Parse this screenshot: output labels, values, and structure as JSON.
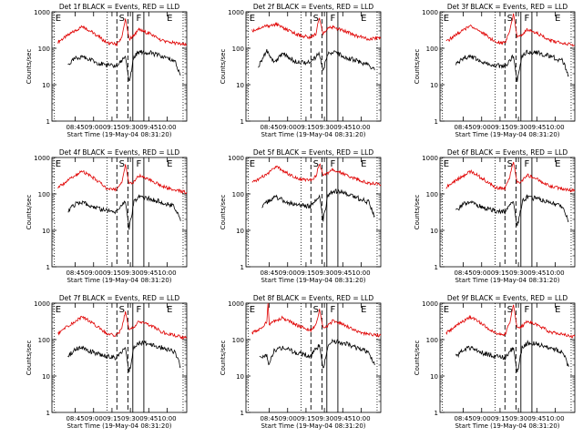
{
  "figure": {
    "start_time_label": "Start Time (19-May-04 08:31:20)",
    "y_axis_label": "Counts/sec",
    "x_tick_labels": [
      "08:45",
      "09:00",
      "09:15",
      "09:30",
      "09:45",
      "10:00"
    ],
    "y_tick_labels": [
      "1",
      "10",
      "100",
      "1000"
    ],
    "interval_letters": [
      "E",
      "S",
      "F",
      "E"
    ]
  },
  "chart_data": [
    {
      "type": "line",
      "title": "Det 1f BLACK = Events, RED = LLD",
      "ylabel": "Counts/sec",
      "xlabel": "Start Time (19-May-04 08:31:20)",
      "x_ticks": [
        "08:45",
        "09:00",
        "09:15",
        "09:30",
        "09:45",
        "10:00"
      ],
      "y_scale": "log",
      "ylim": [
        1,
        1000
      ],
      "series": [
        {
          "name": "LLD",
          "color": "#e00000",
          "x_minutes": [
            0,
            10,
            20,
            30,
            40,
            48,
            52,
            55,
            58,
            62,
            66,
            75,
            85,
            95,
            105
          ],
          "values": [
            150,
            250,
            400,
            250,
            140,
            130,
            200,
            650,
            180,
            220,
            320,
            250,
            160,
            140,
            120
          ]
        },
        {
          "name": "Events",
          "color": "#000000",
          "x_minutes": [
            8,
            15,
            20,
            28,
            38,
            48,
            50,
            55,
            58,
            62,
            66,
            75,
            85,
            95,
            100
          ],
          "values": [
            35,
            55,
            60,
            45,
            35,
            32,
            40,
            60,
            12,
            60,
            80,
            75,
            60,
            45,
            18
          ]
        }
      ]
    },
    {
      "type": "line",
      "title": "Det 2f BLACK = Events, RED = LLD",
      "ylabel": "Counts/sec",
      "xlabel": "Start Time (19-May-04 08:31:20)",
      "x_ticks": [
        "08:45",
        "09:00",
        "09:15",
        "09:30",
        "09:45",
        "10:00"
      ],
      "y_scale": "log",
      "ylim": [
        1,
        1000
      ],
      "series": [
        {
          "name": "LLD",
          "color": "#e00000",
          "x_minutes": [
            0,
            10,
            20,
            30,
            40,
            48,
            52,
            55,
            58,
            62,
            66,
            75,
            85,
            95,
            105
          ],
          "values": [
            300,
            400,
            450,
            300,
            220,
            200,
            250,
            700,
            250,
            350,
            380,
            300,
            220,
            180,
            200
          ]
        },
        {
          "name": "Events",
          "color": "#000000",
          "x_minutes": [
            5,
            12,
            18,
            25,
            35,
            48,
            50,
            55,
            58,
            62,
            66,
            75,
            85,
            95,
            100
          ],
          "values": [
            30,
            90,
            40,
            70,
            45,
            40,
            50,
            70,
            25,
            70,
            80,
            60,
            45,
            35,
            25
          ]
        }
      ]
    },
    {
      "type": "line",
      "title": "Det 3f BLACK = Events, RED = LLD",
      "ylabel": "Counts/sec",
      "xlabel": "Start Time (19-May-04 08:31:20)",
      "x_ticks": [
        "08:45",
        "09:00",
        "09:15",
        "09:30",
        "09:45",
        "10:00"
      ],
      "y_scale": "log",
      "ylim": [
        1,
        1000
      ],
      "series": [
        {
          "name": "LLD",
          "color": "#e00000",
          "x_minutes": [
            0,
            10,
            20,
            30,
            40,
            48,
            52,
            55,
            58,
            62,
            66,
            75,
            85,
            95,
            105
          ],
          "values": [
            150,
            260,
            420,
            260,
            150,
            140,
            300,
            900,
            200,
            230,
            330,
            250,
            160,
            140,
            120
          ]
        },
        {
          "name": "Events",
          "color": "#000000",
          "x_minutes": [
            8,
            15,
            20,
            28,
            38,
            48,
            50,
            55,
            58,
            62,
            66,
            75,
            85,
            95,
            100
          ],
          "values": [
            35,
            55,
            60,
            45,
            35,
            32,
            40,
            60,
            12,
            60,
            80,
            75,
            60,
            45,
            18
          ]
        }
      ]
    },
    {
      "type": "line",
      "title": "Det 4f BLACK = Events, RED = LLD",
      "ylabel": "Counts/sec",
      "xlabel": "Start Time (19-May-04 08:31:20)",
      "x_ticks": [
        "08:45",
        "09:00",
        "09:15",
        "09:30",
        "09:45",
        "10:00"
      ],
      "y_scale": "log",
      "ylim": [
        1,
        1000
      ],
      "series": [
        {
          "name": "LLD",
          "color": "#e00000",
          "x_minutes": [
            0,
            10,
            20,
            30,
            40,
            48,
            52,
            55,
            58,
            62,
            66,
            75,
            85,
            95,
            105
          ],
          "values": [
            150,
            260,
            420,
            260,
            140,
            130,
            200,
            650,
            180,
            220,
            320,
            250,
            160,
            130,
            110
          ]
        },
        {
          "name": "Events",
          "color": "#000000",
          "x_minutes": [
            8,
            15,
            20,
            28,
            38,
            48,
            50,
            55,
            58,
            62,
            66,
            75,
            85,
            95,
            100
          ],
          "values": [
            35,
            55,
            60,
            45,
            35,
            32,
            40,
            60,
            12,
            60,
            80,
            75,
            60,
            45,
            18
          ]
        }
      ]
    },
    {
      "type": "line",
      "title": "Det 5f BLACK = Events, RED = LLD",
      "ylabel": "Counts/sec",
      "xlabel": "Start Time (19-May-04 08:31:20)",
      "x_ticks": [
        "08:45",
        "09:00",
        "09:15",
        "09:30",
        "09:45",
        "10:00"
      ],
      "y_scale": "log",
      "ylim": [
        1,
        1000
      ],
      "series": [
        {
          "name": "LLD",
          "color": "#e00000",
          "x_minutes": [
            0,
            10,
            20,
            30,
            40,
            48,
            52,
            55,
            58,
            62,
            66,
            75,
            85,
            95,
            105
          ],
          "values": [
            200,
            320,
            550,
            350,
            250,
            240,
            300,
            700,
            300,
            380,
            480,
            350,
            250,
            200,
            180
          ]
        },
        {
          "name": "Events",
          "color": "#000000",
          "x_minutes": [
            8,
            15,
            20,
            28,
            38,
            48,
            50,
            55,
            58,
            62,
            66,
            75,
            85,
            95,
            100
          ],
          "values": [
            45,
            70,
            80,
            60,
            50,
            45,
            55,
            90,
            20,
            90,
            120,
            110,
            80,
            60,
            25
          ]
        }
      ]
    },
    {
      "type": "line",
      "title": "Det 6f BLACK = Events, RED = LLD",
      "ylabel": "Counts/sec",
      "xlabel": "Start Time (19-May-04 08:31:20)",
      "x_ticks": [
        "08:45",
        "09:00",
        "09:15",
        "09:30",
        "09:45",
        "10:00"
      ],
      "y_scale": "log",
      "ylim": [
        1,
        1000
      ],
      "series": [
        {
          "name": "LLD",
          "color": "#e00000",
          "x_minutes": [
            0,
            10,
            20,
            30,
            40,
            48,
            52,
            55,
            58,
            62,
            66,
            75,
            85,
            95,
            105
          ],
          "values": [
            150,
            260,
            420,
            260,
            150,
            140,
            300,
            750,
            200,
            230,
            330,
            250,
            160,
            140,
            120
          ]
        },
        {
          "name": "Events",
          "color": "#000000",
          "x_minutes": [
            8,
            15,
            20,
            28,
            38,
            48,
            50,
            55,
            58,
            62,
            66,
            75,
            85,
            95,
            100
          ],
          "values": [
            35,
            55,
            60,
            45,
            35,
            32,
            40,
            60,
            12,
            60,
            80,
            75,
            60,
            45,
            18
          ]
        }
      ]
    },
    {
      "type": "line",
      "title": "Det 7f BLACK = Events, RED = LLD",
      "ylabel": "Counts/sec",
      "xlabel": "Start Time (19-May-04 08:31:20)",
      "x_ticks": [
        "08:45",
        "09:00",
        "09:15",
        "09:30",
        "09:45",
        "10:00"
      ],
      "y_scale": "log",
      "ylim": [
        1,
        1000
      ],
      "series": [
        {
          "name": "LLD",
          "color": "#e00000",
          "x_minutes": [
            0,
            10,
            20,
            30,
            40,
            48,
            52,
            55,
            58,
            62,
            66,
            75,
            85,
            95,
            105
          ],
          "values": [
            150,
            260,
            420,
            260,
            140,
            130,
            200,
            600,
            180,
            220,
            320,
            250,
            160,
            130,
            110
          ]
        },
        {
          "name": "Events",
          "color": "#000000",
          "x_minutes": [
            8,
            15,
            20,
            28,
            38,
            48,
            50,
            55,
            58,
            62,
            66,
            75,
            85,
            95,
            100
          ],
          "values": [
            35,
            55,
            60,
            45,
            35,
            32,
            40,
            60,
            12,
            60,
            80,
            75,
            60,
            45,
            18
          ]
        }
      ]
    },
    {
      "type": "line",
      "title": "Det 8f BLACK = Events, RED = LLD",
      "ylabel": "Counts/sec",
      "xlabel": "Start Time (19-May-04 08:31:20)",
      "x_ticks": [
        "08:45",
        "09:00",
        "09:15",
        "09:30",
        "09:45",
        "10:00"
      ],
      "y_scale": "log",
      "ylim": [
        1,
        1000
      ],
      "series": [
        {
          "name": "LLD",
          "color": "#e00000",
          "x_minutes": [
            0,
            8,
            12,
            13,
            14,
            18,
            25,
            35,
            48,
            52,
            55,
            58,
            62,
            66,
            75,
            85,
            95,
            105
          ],
          "values": [
            150,
            220,
            300,
            1000,
            250,
            320,
            400,
            260,
            180,
            250,
            700,
            200,
            240,
            330,
            250,
            170,
            140,
            130
          ]
        },
        {
          "name": "Events",
          "color": "#000000",
          "x_minutes": [
            6,
            12,
            14,
            18,
            25,
            35,
            48,
            50,
            55,
            58,
            62,
            66,
            75,
            85,
            95,
            100
          ],
          "values": [
            30,
            35,
            20,
            50,
            60,
            45,
            35,
            45,
            70,
            15,
            70,
            90,
            80,
            60,
            45,
            20
          ]
        }
      ]
    },
    {
      "type": "line",
      "title": "Det 9f BLACK = Events, RED = LLD",
      "ylabel": "Counts/sec",
      "xlabel": "Start Time (19-May-04 08:31:20)",
      "x_ticks": [
        "08:45",
        "09:00",
        "09:15",
        "09:30",
        "09:45",
        "10:00"
      ],
      "y_scale": "log",
      "ylim": [
        1,
        1000
      ],
      "series": [
        {
          "name": "LLD",
          "color": "#e00000",
          "x_minutes": [
            0,
            10,
            20,
            30,
            40,
            48,
            52,
            55,
            58,
            62,
            66,
            75,
            85,
            95,
            105
          ],
          "values": [
            150,
            260,
            420,
            260,
            150,
            140,
            300,
            900,
            200,
            230,
            330,
            250,
            160,
            140,
            120
          ]
        },
        {
          "name": "Events",
          "color": "#000000",
          "x_minutes": [
            8,
            15,
            20,
            28,
            38,
            48,
            50,
            55,
            58,
            62,
            66,
            75,
            85,
            95,
            100
          ],
          "values": [
            35,
            55,
            60,
            45,
            35,
            32,
            40,
            60,
            12,
            60,
            80,
            75,
            60,
            45,
            18
          ]
        }
      ]
    }
  ]
}
